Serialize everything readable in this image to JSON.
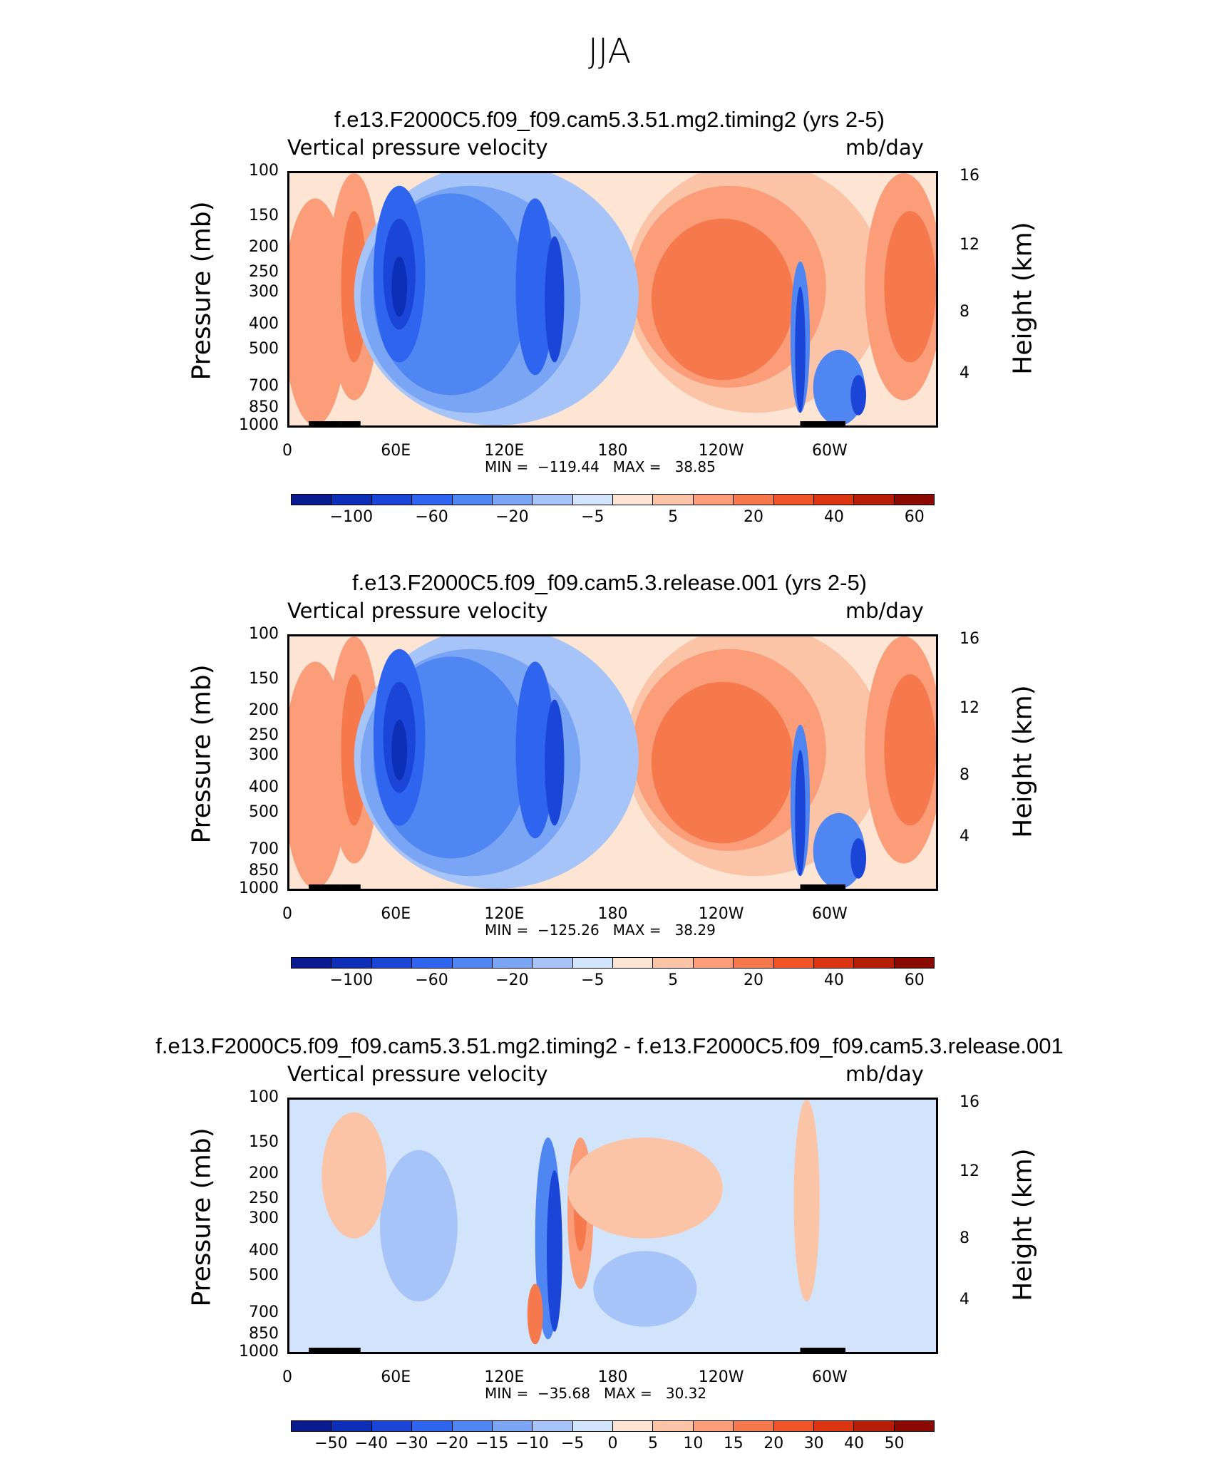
{
  "figure_title": "JJA",
  "chart_data": [
    {
      "type": "heatmap",
      "title": "f.e13.F2000C5.f09_f09.cam5.3.51.mg2.timing2 (yrs 2-5)",
      "subtitle_left": "Vertical pressure velocity",
      "subtitle_right": "mb/day",
      "ylabel": "Pressure (mb)",
      "ylabel_right": "Height (km)",
      "x_ticks": [
        "0",
        "60E",
        "120E",
        "180",
        "120W",
        "60W"
      ],
      "y_ticks": [
        "100",
        "150",
        "200",
        "250",
        "300",
        "400",
        "500",
        "700",
        "850",
        "1000"
      ],
      "y_right_ticks": [
        "16",
        "12",
        "8",
        "4"
      ],
      "min_max_text": "MIN =  −119.44   MAX =   38.85",
      "min": -119.44,
      "max": 38.85,
      "colorbar_labels": [
        "−100",
        "−60",
        "−20",
        "−5",
        "5",
        "20",
        "40",
        "60"
      ],
      "colorbar_colors": [
        "#0a1a8f",
        "#0d2fb8",
        "#1a45d6",
        "#2e64ee",
        "#4f86f2",
        "#7aa5f5",
        "#a7c4f8",
        "#d2e4fc",
        "#fde4d3",
        "#fcc4a7",
        "#fa9d78",
        "#f6784d",
        "#f05528",
        "#db3411",
        "#b51d07",
        "#8a0a02"
      ]
    },
    {
      "type": "heatmap",
      "title": "f.e13.F2000C5.f09_f09.cam5.3.release.001 (yrs 2-5)",
      "subtitle_left": "Vertical pressure velocity",
      "subtitle_right": "mb/day",
      "ylabel": "Pressure (mb)",
      "ylabel_right": "Height (km)",
      "x_ticks": [
        "0",
        "60E",
        "120E",
        "180",
        "120W",
        "60W"
      ],
      "y_ticks": [
        "100",
        "150",
        "200",
        "250",
        "300",
        "400",
        "500",
        "700",
        "850",
        "1000"
      ],
      "y_right_ticks": [
        "16",
        "12",
        "8",
        "4"
      ],
      "min_max_text": "MIN =  −125.26   MAX =   38.29",
      "min": -125.26,
      "max": 38.29,
      "colorbar_labels": [
        "−100",
        "−60",
        "−20",
        "−5",
        "5",
        "20",
        "40",
        "60"
      ],
      "colorbar_colors": [
        "#0a1a8f",
        "#0d2fb8",
        "#1a45d6",
        "#2e64ee",
        "#4f86f2",
        "#7aa5f5",
        "#a7c4f8",
        "#d2e4fc",
        "#fde4d3",
        "#fcc4a7",
        "#fa9d78",
        "#f6784d",
        "#f05528",
        "#db3411",
        "#b51d07",
        "#8a0a02"
      ]
    },
    {
      "type": "heatmap",
      "title": "f.e13.F2000C5.f09_f09.cam5.3.51.mg2.timing2 - f.e13.F2000C5.f09_f09.cam5.3.release.001",
      "subtitle_left": "Vertical pressure velocity",
      "subtitle_right": "mb/day",
      "ylabel": "Pressure (mb)",
      "ylabel_right": "Height (km)",
      "x_ticks": [
        "0",
        "60E",
        "120E",
        "180",
        "120W",
        "60W"
      ],
      "y_ticks": [
        "100",
        "150",
        "200",
        "250",
        "300",
        "400",
        "500",
        "700",
        "850",
        "1000"
      ],
      "y_right_ticks": [
        "16",
        "12",
        "8",
        "4"
      ],
      "min_max_text": "MIN =  −35.68   MAX =   30.32",
      "min": -35.68,
      "max": 30.32,
      "colorbar_labels": [
        "−50",
        "−40",
        "−30",
        "−20",
        "−15",
        "−10",
        "−5",
        "0",
        "5",
        "10",
        "15",
        "20",
        "30",
        "40",
        "50"
      ],
      "colorbar_colors": [
        "#0a1a8f",
        "#0d2fb8",
        "#1a45d6",
        "#2e64ee",
        "#4f86f2",
        "#7aa5f5",
        "#a7c4f8",
        "#d2e4fc",
        "#fde4d3",
        "#fcc4a7",
        "#fa9d78",
        "#f6784d",
        "#f05528",
        "#db3411",
        "#b51d07",
        "#8a0a02"
      ]
    }
  ]
}
